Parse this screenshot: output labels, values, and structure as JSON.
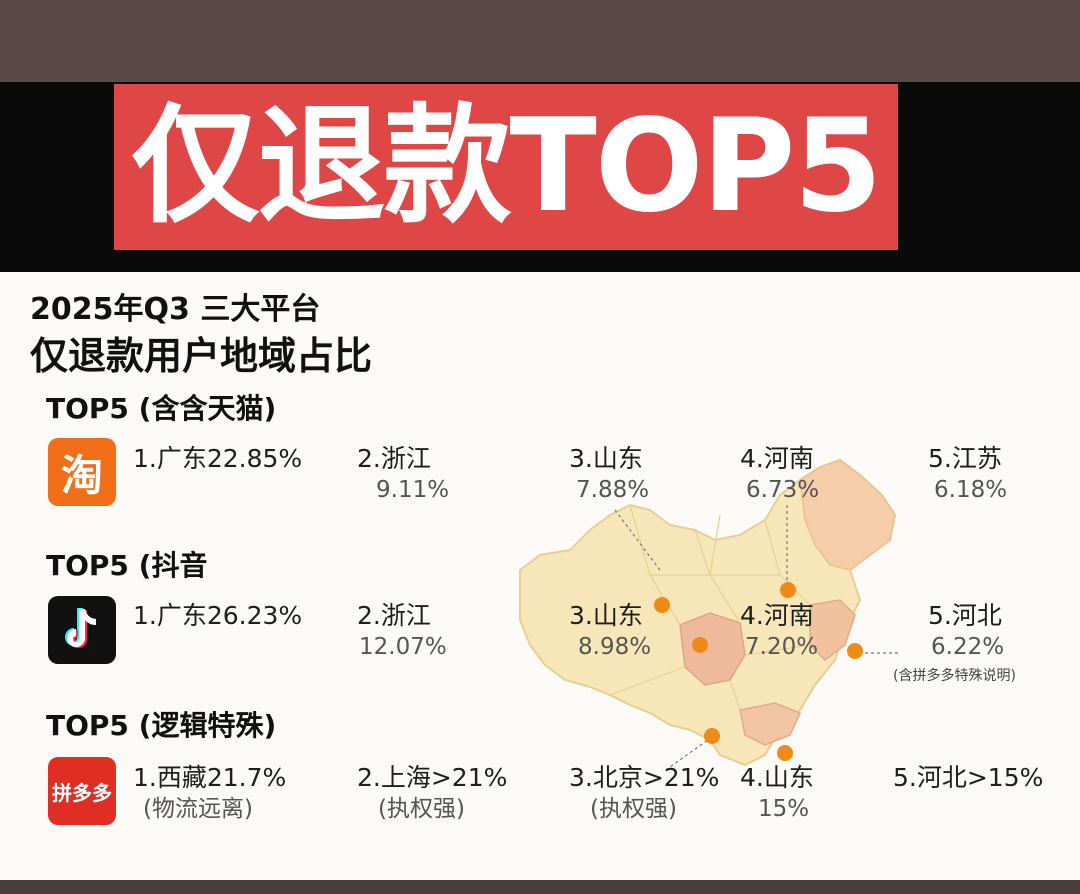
{
  "banner": {
    "title": "仅退款TOP5"
  },
  "heading": {
    "line1": "2025年Q3 三大平台",
    "line2": "仅退款用户地域占比"
  },
  "colors": {
    "banner_red": "#de4745",
    "marker_orange": "#f08a17",
    "taobao_orange": "#f26f1a",
    "pdd_red": "#e02e24"
  },
  "sections": {
    "taobao": {
      "title": "TOP5 (含含天猫)",
      "logo_text": "淘",
      "logo_icon": "taobao-logo",
      "items": [
        {
          "label": "1.广东22.85%",
          "sub": ""
        },
        {
          "label": "2.浙江",
          "sub": "9.11%"
        },
        {
          "label": "3.山东",
          "sub": "7.88%"
        },
        {
          "label": "4.河南",
          "sub": "6.73%"
        },
        {
          "label": "5.江苏",
          "sub": "6.18%"
        }
      ]
    },
    "douyin": {
      "title": "TOP5 (抖音",
      "logo_icon": "douyin-logo",
      "items": [
        {
          "label": "1.广东26.23%",
          "sub": ""
        },
        {
          "label": "2.浙江",
          "sub": "12.07%"
        },
        {
          "label": "3.山东",
          "sub": "8.98%"
        },
        {
          "label": "4.河南",
          "sub": "7.20%"
        },
        {
          "label": "5.河北",
          "sub": "6.22%"
        }
      ],
      "note": "(含拼多多特殊说明)"
    },
    "pdd": {
      "title": "TOP5 (逻辑特殊)",
      "logo_text": "拼多多",
      "logo_icon": "pinduoduo-logo",
      "items": [
        {
          "label": "1.西藏21.7%",
          "sub": "(物流远离)"
        },
        {
          "label": "2.上海>21%",
          "sub": "(执权强)"
        },
        {
          "label": "3.北京>21%",
          "sub": "(执权强)"
        },
        {
          "label": "4.山东",
          "sub": "15%"
        },
        {
          "label": "5.河北>15%",
          "sub": ""
        }
      ]
    }
  }
}
